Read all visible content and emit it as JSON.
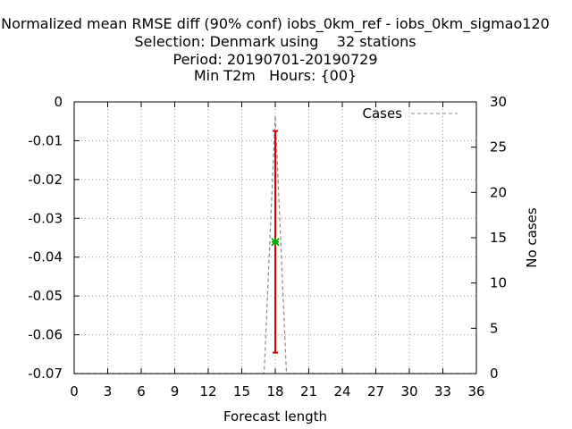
{
  "title_lines": [
    "Normalized mean RMSE diff (90% conf) iobs_0km_ref - iobs_0km_sigmao120",
    "Selection: Denmark using    32 stations",
    "Period: 20190701-20190729",
    "Min T2m   Hours: {00}"
  ],
  "chart_data": {
    "type": "line",
    "xlabel": "Forecast length",
    "ylabel": "",
    "y2label": "No cases",
    "xlim": [
      0,
      36
    ],
    "ylim": [
      -0.07,
      0
    ],
    "y2lim": [
      0,
      30
    ],
    "xticks": [
      0,
      3,
      6,
      9,
      12,
      15,
      18,
      21,
      24,
      27,
      30,
      33,
      36
    ],
    "yticks": [
      0,
      -0.01,
      -0.02,
      -0.03,
      -0.04,
      -0.05,
      -0.06,
      -0.07
    ],
    "ytick_labels": [
      "0",
      "-0.01",
      "-0.02",
      "-0.03",
      "-0.04",
      "-0.05",
      "-0.06",
      "-0.07"
    ],
    "y2ticks": [
      0,
      5,
      10,
      15,
      20,
      25,
      30
    ],
    "grid": true,
    "legend": {
      "position": "top-right",
      "entries": [
        "Cases"
      ]
    },
    "series": [
      {
        "name": "Cases",
        "axis": "y2",
        "style": "dashed",
        "color": "#888888",
        "x": [
          0,
          3,
          6,
          9,
          12,
          15,
          17,
          18,
          19,
          21,
          24,
          27,
          30,
          33,
          36
        ],
        "values": [
          0,
          0,
          0,
          0,
          0,
          0,
          0,
          28.5,
          0,
          0,
          0,
          0,
          0,
          0,
          0
        ]
      },
      {
        "axis": "y1",
        "style": "errorbar",
        "color": "#dd0000",
        "marker_color": "#00aa00",
        "x": [
          18
        ],
        "values": [
          -0.0361
        ],
        "lower": [
          -0.0646
        ],
        "upper": [
          -0.0075
        ]
      }
    ]
  }
}
